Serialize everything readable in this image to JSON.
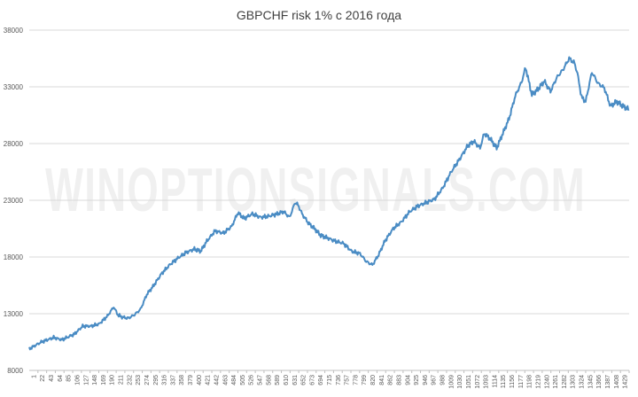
{
  "chart_data": {
    "type": "line",
    "title": "GBPCHF risk 1% с 2016 года",
    "watermark": "WINOPTIONSIGNALS.COM",
    "xlabel": "",
    "ylabel": "",
    "ylim": [
      8000,
      38000
    ],
    "y_ticks": [
      8000,
      13000,
      18000,
      23000,
      28000,
      33000,
      38000
    ],
    "x_ticks": [
      "1",
      "22",
      "43",
      "64",
      "85",
      "106",
      "127",
      "148",
      "169",
      "190",
      "211",
      "232",
      "253",
      "274",
      "295",
      "316",
      "337",
      "358",
      "379",
      "400",
      "421",
      "442",
      "463",
      "484",
      "505",
      "526",
      "547",
      "568",
      "589",
      "610",
      "631",
      "652",
      "673",
      "694",
      "715",
      "736",
      "757",
      "778",
      "799",
      "820",
      "841",
      "862",
      "883",
      "904",
      "925",
      "946",
      "967",
      "988",
      "1009",
      "1030",
      "1051",
      "1072",
      "1093",
      "1114",
      "1135",
      "1156",
      "1177",
      "1198",
      "1219",
      "1240",
      "1261",
      "1282",
      "1303",
      "1324",
      "1345",
      "1366",
      "1387",
      "1408",
      "1429"
    ],
    "x_range": [
      1,
      1450
    ],
    "grid": true,
    "legend": "none",
    "line_color": "#4a8cc4",
    "series": [
      {
        "x": [
          1,
          30,
          60,
          80,
          110,
          130,
          150,
          170,
          190,
          205,
          215,
          225,
          240,
          255,
          270,
          285,
          300,
          320,
          340,
          360,
          380,
          400,
          415,
          430,
          450,
          470,
          490,
          505,
          520,
          540,
          560,
          580,
          600,
          615,
          630,
          643,
          650,
          660,
          675,
          690,
          705,
          720,
          740,
          760,
          780,
          800,
          815,
          830,
          845,
          860,
          880,
          900,
          920,
          940,
          960,
          980,
          1000,
          1020,
          1040,
          1060,
          1075,
          1090,
          1100,
          1115,
          1130,
          1145,
          1160,
          1175,
          1190,
          1200,
          1215,
          1230,
          1245,
          1260,
          1275,
          1290,
          1305,
          1318,
          1325,
          1335,
          1345,
          1360,
          1375,
          1390,
          1405,
          1420,
          1435,
          1450
        ],
        "values": [
          9900,
          10500,
          10900,
          10700,
          11200,
          11900,
          11900,
          12100,
          12800,
          13600,
          12900,
          12700,
          12600,
          12900,
          13400,
          14700,
          15400,
          16500,
          17300,
          17900,
          18400,
          18700,
          18500,
          19400,
          20300,
          20100,
          20700,
          21900,
          21400,
          21800,
          21500,
          21600,
          21800,
          22000,
          21500,
          22800,
          22600,
          21800,
          21000,
          20500,
          19900,
          19700,
          19400,
          19200,
          18500,
          18300,
          17600,
          17300,
          18200,
          19400,
          20500,
          21100,
          22000,
          22500,
          22800,
          23100,
          24100,
          25500,
          26600,
          27800,
          28200,
          27600,
          28900,
          28400,
          27600,
          28900,
          30200,
          32200,
          33400,
          34700,
          32300,
          32800,
          33500,
          32600,
          33800,
          34500,
          35500,
          35100,
          34200,
          32100,
          31700,
          34300,
          33300,
          32900,
          31300,
          31700,
          31300,
          31000
        ]
      }
    ]
  }
}
